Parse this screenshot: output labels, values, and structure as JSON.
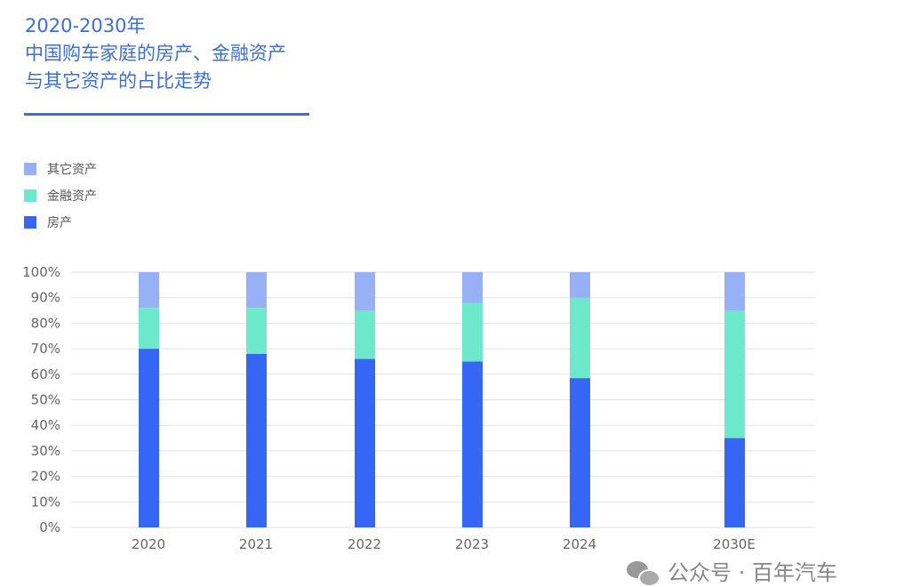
{
  "title_lines": [
    "2020-2030年",
    "中国购车家庭的房产、金融资产",
    "与其它资产的占比走势"
  ],
  "colors": {
    "title": "#3b6fd6",
    "house": "#3566f5",
    "financial": "#6de8cb",
    "other": "#97b0f6"
  },
  "watermark": {
    "text": "公众号 · 百年汽车"
  },
  "chart_data": {
    "type": "bar",
    "stacked": true,
    "title": "2020-2030年 中国购车家庭的房产、金融资产与其它资产的占比走势",
    "categories": [
      "2020",
      "2021",
      "2022",
      "2023",
      "2024",
      "2030E"
    ],
    "series": [
      {
        "name": "房产",
        "values": [
          70,
          68,
          66,
          65,
          58.5,
          35
        ]
      },
      {
        "name": "金融资产",
        "values": [
          16,
          18,
          19,
          23,
          31.5,
          50
        ]
      },
      {
        "name": "其它资产",
        "values": [
          14,
          14,
          15,
          12,
          10,
          15
        ]
      }
    ],
    "legend_order": [
      "其它资产",
      "金融资产",
      "房产"
    ],
    "yticks": [
      "0%",
      "10%",
      "20%",
      "30%",
      "40%",
      "50%",
      "60%",
      "70%",
      "80%",
      "90%",
      "100%"
    ],
    "ylim": [
      0,
      100
    ],
    "xlabel": "",
    "ylabel": "",
    "grid": true,
    "legend_position": "top-left"
  }
}
